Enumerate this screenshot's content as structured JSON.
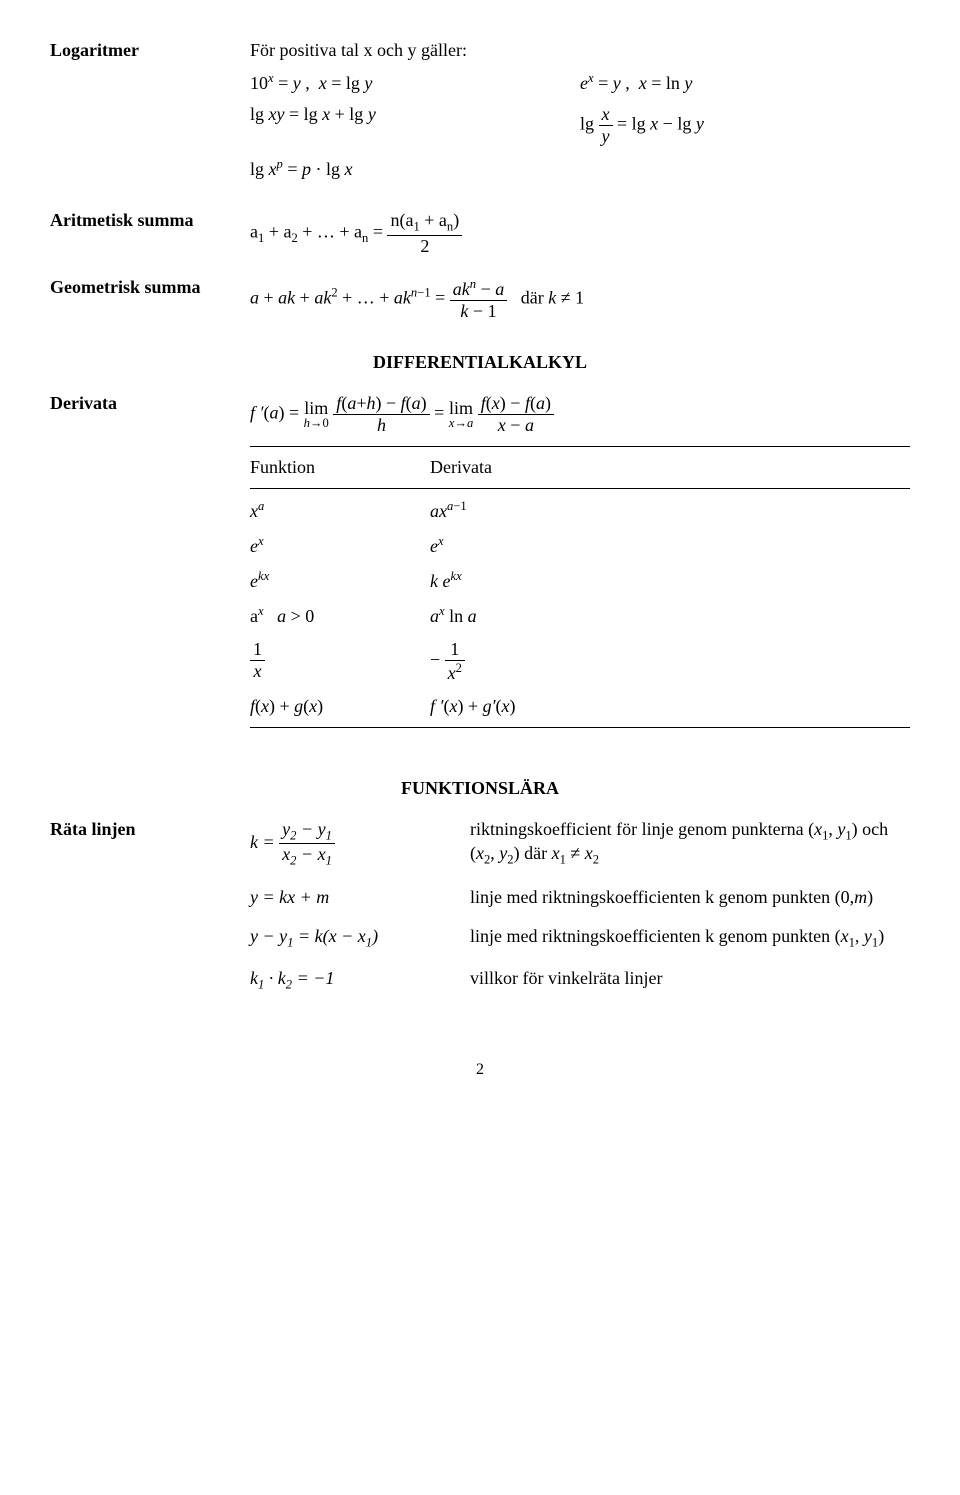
{
  "logaritmer": {
    "label": "Logaritmer",
    "intro": "För positiva tal x och y gäller:",
    "eq1a": "10<sup class=\"it\">x</sup> = <span class=\"it\">y</span> , &nbsp;<span class=\"it\">x</span> = lg <span class=\"it\">y</span>",
    "eq1b": "<span class=\"it\">e</span><sup class=\"it\">x</sup> = <span class=\"it\">y</span> , &nbsp;<span class=\"it\">x</span> = ln <span class=\"it\">y</span>",
    "eq2a": "lg <span class=\"it\">xy</span> = lg <span class=\"it\">x</span> + lg <span class=\"it\">y</span>",
    "eq2b": "lg <span class=\"frac\"><span class=\"num\"><span class=\"it\">x</span></span><span class=\"den\"><span class=\"it\">y</span></span></span> = lg <span class=\"it\">x</span> − lg <span class=\"it\">y</span>",
    "eq3": "lg <span class=\"it\">x</span><sup class=\"it\">p</sup> = <span class=\"it\">p</span> · lg <span class=\"it\">x</span>"
  },
  "aritmetisk": {
    "label": "Aritmetisk summa",
    "eq": "a<sub>1</sub> + a<sub>2</sub> + … + a<sub>n</sub> = <span class=\"frac\"><span class=\"num\">n(a<sub>1</sub> + a<sub>n</sub>)</span><span class=\"den\">2</span></span>"
  },
  "geometrisk": {
    "label": "Geometrisk summa",
    "eq": "<span class=\"it\">a</span> + <span class=\"it\">ak</span> + <span class=\"it\">ak</span><sup>2</sup> + … + <span class=\"it\">ak</span><sup><span class=\"it\">n</span>−1</sup> = <span class=\"frac\"><span class=\"num\"><span class=\"it\">ak</span><sup class=\"it\">n</sup> − <span class=\"it\">a</span></span><span class=\"den\"><span class=\"it\">k</span> − 1</span></span> &nbsp;&nbsp;där <span class=\"it\">k</span> ≠ 1"
  },
  "diff": {
    "title": "DIFFERENTIALKALKYL",
    "derivata_label": "Derivata",
    "derivata_eq": "<span class=\"it\">f ′</span>(<span class=\"it\">a</span>) = <span class=\"lim\"><span class=\"top\">lim</span><span class=\"bot\"><span class=\"it\">h</span>→0</span></span> <span class=\"frac\"><span class=\"num\"><span class=\"it\">f</span>(<span class=\"it\">a</span>+<span class=\"it\">h</span>) − <span class=\"it\">f</span>(<span class=\"it\">a</span>)</span><span class=\"den\"><span class=\"it\">h</span></span></span> = <span class=\"lim\"><span class=\"top\">lim</span><span class=\"bot\"><span class=\"it\">x</span>→<span class=\"it\">a</span></span></span> <span class=\"frac\"><span class=\"num\"><span class=\"it\">f</span>(<span class=\"it\">x</span>) − <span class=\"it\">f</span>(<span class=\"it\">a</span>)</span><span class=\"den\"><span class=\"it\">x</span> − <span class=\"it\">a</span></span></span>",
    "table_h1": "Funktion",
    "table_h2": "Derivata",
    "rows": [
      {
        "f": "<span class=\"it\">x</span><sup class=\"it\">a</sup>",
        "d": "<span class=\"it\">ax</span><sup><span class=\"it\">a</span>−1</sup>"
      },
      {
        "f": "<span class=\"it\">e</span><sup class=\"it\">x</sup>",
        "d": "<span class=\"it\">e</span><sup class=\"it\">x</sup>"
      },
      {
        "f": "<span class=\"it\">e</span><sup class=\"it\">kx</sup>",
        "d": "<span class=\"it\">k e</span><sup class=\"it\">kx</sup>"
      },
      {
        "f": "a<sup class=\"it\">x</sup>&nbsp;&nbsp; <span class=\"it\">a</span> &gt; 0",
        "d": "<span class=\"it\">a</span><sup class=\"it\">x</sup> ln <span class=\"it\">a</span>"
      },
      {
        "f": "<span class=\"frac\"><span class=\"num\">1</span><span class=\"den\"><span class=\"it\">x</span></span></span>",
        "d": "− <span class=\"frac\"><span class=\"num\">1</span><span class=\"den\"><span class=\"it\">x</span><sup>2</sup></span></span>"
      },
      {
        "f": "<span class=\"it\">f</span>(<span class=\"it\">x</span>) + <span class=\"it\">g</span>(<span class=\"it\">x</span>)",
        "d": "<span class=\"it\">f ′</span>(<span class=\"it\">x</span>) + <span class=\"it\">g′</span>(<span class=\"it\">x</span>)"
      }
    ]
  },
  "funk": {
    "title": "FUNKTIONSLÄRA",
    "rata_label": "Räta linjen",
    "r1_lhs": "<span class=\"it\">k</span> = <span class=\"frac\"><span class=\"num\"><span class=\"it\">y</span><sub>2</sub> − <span class=\"it\">y</span><sub>1</sub></span><span class=\"den\"><span class=\"it\">x</span><sub>2</sub> − <span class=\"it\">x</span><sub>1</sub></span></span>",
    "r1_rhs": "riktningskoefficient för linje genom punkterna (<span class=\"it\">x</span><sub>1</sub>, <span class=\"it\">y</span><sub>1</sub>) och (<span class=\"it\">x</span><sub>2</sub>, <span class=\"it\">y</span><sub>2</sub>) där <span class=\"it\">x</span><sub>1</sub> ≠ <span class=\"it\">x</span><sub>2</sub>",
    "r2_lhs": "<span class=\"it\">y</span> = <span class=\"it\">kx</span> + <span class=\"it\">m</span>",
    "r2_rhs": "linje med riktningskoefficienten k genom punkten (0,<span class=\"it\">m</span>)",
    "r3_lhs": "<span class=\"it\">y</span> − <span class=\"it\">y</span><sub>1</sub> = <span class=\"it\">k</span>(<span class=\"it\">x</span> − <span class=\"it\">x</span><sub>1</sub>)",
    "r3_rhs": "linje med riktningskoefficienten k genom punkten (<span class=\"it\">x</span><sub>1</sub>, <span class=\"it\">y</span><sub>1</sub>)",
    "r4_lhs": "<span class=\"it\">k</span><sub>1</sub> · <span class=\"it\">k</span><sub>2</sub> = −1",
    "r4_rhs": "villkor för vinkelräta linjer"
  },
  "pagenum": "2"
}
